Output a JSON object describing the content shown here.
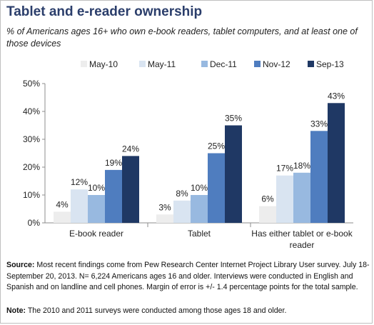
{
  "title": "Tablet and e-reader ownership",
  "subtitle": "% of Americans ages 16+ who own e-book readers, tablet computers, and at least one of those devices",
  "source_label": "Source:",
  "source_text": " Most recent findings come from Pew Research Center Internet Project Library User survey. July 18-September 20, 2013. N= 6,224 Americans ages 16 and older. Interviews were conducted in English and Spanish and on landline and cell phones. Margin of error is +/- 1.4 percentage points for the total sample.",
  "note_label": "Note:",
  "note_text": " The 2010 and 2011 surveys were conducted among those ages 18 and older.",
  "colors": {
    "May-10": "#ededed",
    "May-11": "#d9e4f1",
    "Dec-11": "#98b9e0",
    "Nov-12": "#4f7dbf",
    "Sep-13": "#1f3864"
  },
  "chart_data": {
    "type": "bar",
    "categories": [
      "E-book reader",
      "Tablet",
      "Has either tablet or e-book reader"
    ],
    "series": [
      {
        "name": "May-10",
        "values": [
          4,
          3,
          6
        ],
        "labels": [
          "4%",
          "3%",
          "6%"
        ]
      },
      {
        "name": "May-11",
        "values": [
          12,
          8,
          17
        ],
        "labels": [
          "12%",
          "8%",
          "17%"
        ]
      },
      {
        "name": "Dec-11",
        "values": [
          10,
          10,
          18
        ],
        "labels": [
          "10%",
          "10%",
          "18%"
        ]
      },
      {
        "name": "Nov-12",
        "values": [
          19,
          25,
          33
        ],
        "labels": [
          "19%",
          "25%",
          "33%"
        ]
      },
      {
        "name": "Sep-13",
        "values": [
          24,
          35,
          43
        ],
        "labels": [
          "24%",
          "35%",
          "43%"
        ]
      }
    ],
    "yticks": [
      "0%",
      "10%",
      "20%",
      "30%",
      "40%",
      "50%"
    ],
    "ylim": [
      0,
      50
    ],
    "grid": false,
    "legend_position": "top-right"
  }
}
